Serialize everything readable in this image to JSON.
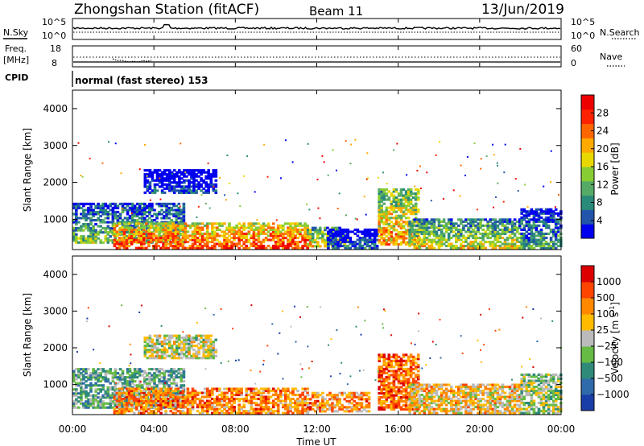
{
  "header": {
    "title": "Zhongshan Station (fitACF)",
    "beam": "Beam 11",
    "date": "13/Jun/2019"
  },
  "top_panels": {
    "nsky_label": "N.Sky",
    "nsky_ticks": [
      "10^5",
      "10^0"
    ],
    "nsearch_label": "N.Search",
    "nsearch_ticks": [
      "10^5",
      "10^0"
    ],
    "freq_label_1": "Freq.",
    "freq_label_2": "[MHz]",
    "freq_ticks": [
      "18",
      "8"
    ],
    "nave_label": "Nave",
    "nave_ticks": [
      "60",
      "0"
    ],
    "cpid_label": "CPID",
    "cpid_value": "normal (fast stereo) 153"
  },
  "chart_data": [
    {
      "type": "heatmap",
      "title": "",
      "xlabel": "",
      "ylabel": "Slant Range [km]",
      "xlim": [
        0,
        24
      ],
      "ylim": [
        180,
        4500
      ],
      "yticks": [
        "1000",
        "2000",
        "3000",
        "4000"
      ],
      "colorbar": {
        "label": "Power [dB]",
        "ticks": [
          "4",
          "8",
          "12",
          "16",
          "20",
          "24",
          "28"
        ],
        "colors": [
          "#0000ee",
          "#2255aa",
          "#2a8a7a",
          "#55aa66",
          "#88cc33",
          "#e8d800",
          "#ffaa00",
          "#ff6600",
          "#ff2200",
          "#ee0000"
        ]
      },
      "regions": [
        {
          "t0": 0.0,
          "t1": 5.5,
          "r0": 350,
          "r1": 1400,
          "level": 0.42
        },
        {
          "t0": 2.0,
          "t1": 11.5,
          "r0": 200,
          "r1": 900,
          "level": 0.85
        },
        {
          "t0": 11.5,
          "t1": 13.5,
          "r0": 250,
          "r1": 800,
          "level": 0.6
        },
        {
          "t0": 12.5,
          "t1": 15.0,
          "r0": 200,
          "r1": 700,
          "level": 0.2
        },
        {
          "t0": 15.0,
          "t1": 17.0,
          "r0": 300,
          "r1": 1800,
          "level": 0.7
        },
        {
          "t0": 16.5,
          "t1": 22.0,
          "r0": 200,
          "r1": 1000,
          "level": 0.55
        },
        {
          "t0": 22.0,
          "t1": 24.0,
          "r0": 200,
          "r1": 1300,
          "level": 0.35
        },
        {
          "t0": 3.5,
          "t1": 7.0,
          "r0": 1700,
          "r1": 2350,
          "level": 0.12
        }
      ]
    },
    {
      "type": "heatmap",
      "title": "",
      "xlabel": "Time UT",
      "ylabel": "Slant Range [km]",
      "xlim": [
        0,
        24
      ],
      "ylim": [
        180,
        4500
      ],
      "xticks": [
        "00:00",
        "04:00",
        "08:00",
        "12:00",
        "16:00",
        "20:00",
        "00:00"
      ],
      "yticks": [
        "1000",
        "2000",
        "3000",
        "4000"
      ],
      "colorbar": {
        "label_main": "Velocity",
        "label_unit": "[m s",
        "label_exp": "-1",
        "label_close": "]",
        "ticks": [
          "1000",
          "500",
          "100",
          "25",
          "−25",
          "−100",
          "−500",
          "−1000"
        ],
        "colors": [
          "#1a3ea8",
          "#2f6aaa",
          "#2f8a7a",
          "#66bb44",
          "#bbbbbb",
          "#ffbb00",
          "#ff8800",
          "#ff4400",
          "#dd0000"
        ]
      },
      "regions": [
        {
          "t0": 0.0,
          "t1": 5.5,
          "r0": 350,
          "r1": 1400,
          "level": 0.35
        },
        {
          "t0": 2.0,
          "t1": 11.5,
          "r0": 200,
          "r1": 900,
          "level": 0.72
        },
        {
          "t0": 11.5,
          "t1": 14.5,
          "r0": 250,
          "r1": 800,
          "level": 0.7
        },
        {
          "t0": 15.0,
          "t1": 17.0,
          "r0": 300,
          "r1": 1800,
          "level": 0.78
        },
        {
          "t0": 16.5,
          "t1": 22.0,
          "r0": 200,
          "r1": 1000,
          "level": 0.6
        },
        {
          "t0": 22.0,
          "t1": 24.0,
          "r0": 200,
          "r1": 1300,
          "level": 0.45
        },
        {
          "t0": 3.5,
          "t1": 7.0,
          "r0": 1700,
          "r1": 2350,
          "level": 0.5
        }
      ]
    }
  ]
}
